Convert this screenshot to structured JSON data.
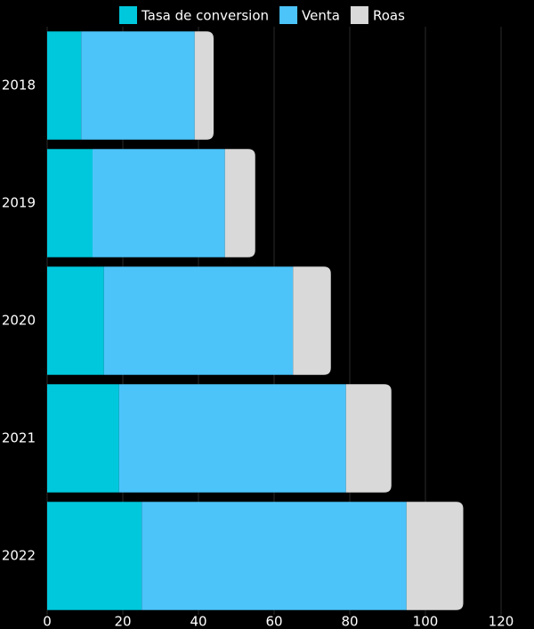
{
  "chart_data": {
    "type": "stacked-bar-horizontal",
    "categories": [
      "2018",
      "2019",
      "2020",
      "2021",
      "2022"
    ],
    "series": [
      {
        "name": "Tasa de conversion",
        "color": "#00c8dc",
        "values": [
          9,
          12,
          15,
          19,
          25
        ]
      },
      {
        "name": "Venta",
        "color": "#4cc4fa",
        "values": [
          30,
          35,
          50,
          60,
          70
        ]
      },
      {
        "name": "Roas",
        "color": "#d9d9d9",
        "values": [
          5,
          8,
          10,
          12,
          15
        ]
      }
    ],
    "xlim": [
      0,
      120
    ],
    "xticks": [
      0,
      20,
      40,
      60,
      80,
      100,
      120
    ],
    "grid": true
  }
}
